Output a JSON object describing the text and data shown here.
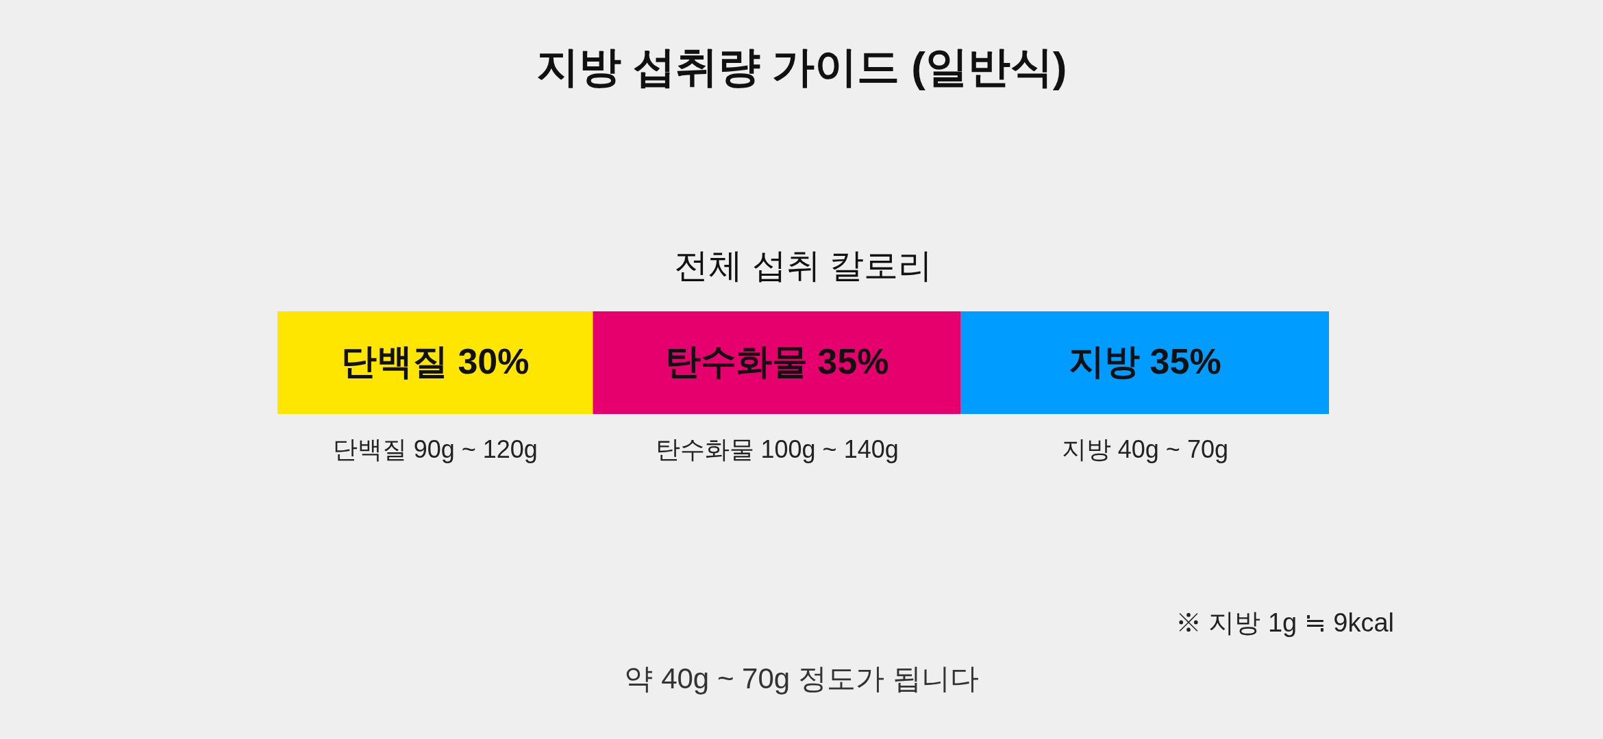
{
  "chart_data": {
    "type": "bar",
    "orientation": "horizontal",
    "stacked": true,
    "title": "지방 섭취량 가이드 (일반식)",
    "subtitle": "전체 섭취 칼로리",
    "categories": [
      null
    ],
    "xlim": [
      0,
      100
    ],
    "tick_labels": false,
    "series": [
      {
        "color": "#ffe600",
        "values": [
          30
        ],
        "value_labels": [
          "단백질 30%"
        ]
      },
      {
        "color": "#e6006e",
        "values": [
          35
        ],
        "value_labels": [
          "탄수화물 35%"
        ]
      },
      {
        "color": "#009cff",
        "values": [
          35
        ],
        "value_labels": [
          "지방 35%"
        ]
      }
    ],
    "annotations": [
      "단백질 90g ~ 120g",
      "탄수화물 100g ~ 140g",
      "지방 40g ~ 70g",
      "※ 지방 1g ≒ 9kcal",
      "약 40g ~ 70g 정도가 됩니다"
    ]
  }
}
